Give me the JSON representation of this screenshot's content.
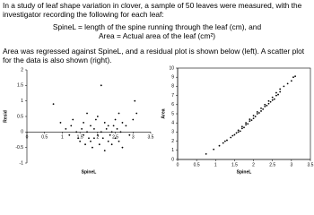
{
  "text": {
    "intro": "In a study of leaf shape variation in clover, a sample of 50 leaves were measured, with the investigator recording the following for each leaf:",
    "def1": "SpineL = length of the spine running through the leaf (cm), and",
    "def2": "Area = Actual area of the leaf (cm²)",
    "outro": "Area was regressed against SpineL, and a residual plot is shown below (left). A scatter plot for the data is also shown (right)."
  },
  "chart_data": [
    {
      "type": "scatter",
      "xlabel": "SpineL",
      "ylabel": "Resid",
      "color": "#000000",
      "xlim": [
        0,
        3.5
      ],
      "xticks": [
        0,
        0.5,
        1,
        1.5,
        2,
        2.5,
        3,
        3.5
      ],
      "ylim": [
        -1,
        2
      ],
      "yticks": [
        -1,
        -0.5,
        0,
        0.5,
        1,
        1.5,
        2
      ],
      "x": [
        0.75,
        0.95,
        1.1,
        1.2,
        1.25,
        1.3,
        1.4,
        1.45,
        1.5,
        1.55,
        1.6,
        1.6,
        1.65,
        1.7,
        1.7,
        1.75,
        1.8,
        1.8,
        1.85,
        1.9,
        1.9,
        1.95,
        2.0,
        2.0,
        2.05,
        2.1,
        2.1,
        2.15,
        2.2,
        2.2,
        2.25,
        2.3,
        2.3,
        2.35,
        2.4,
        2.4,
        2.45,
        2.5,
        2.5,
        2.55,
        2.6,
        2.6,
        2.65,
        2.7,
        2.7,
        2.8,
        2.9,
        3.0,
        3.05,
        3.1
      ],
      "y": [
        0.9,
        0.3,
        0.1,
        -0.1,
        0.2,
        0.4,
        0.0,
        -0.2,
        -0.3,
        0.1,
        -0.1,
        0.3,
        -0.4,
        0.0,
        0.6,
        -0.2,
        0.2,
        -0.3,
        -0.5,
        0.1,
        -0.2,
        0.4,
        -0.1,
        0.5,
        -0.4,
        0.0,
        1.5,
        -0.2,
        0.3,
        -0.6,
        0.1,
        -0.3,
        0.2,
        -0.1,
        0.0,
        -0.4,
        0.2,
        0.4,
        -0.2,
        0.1,
        -0.3,
        0.6,
        0.0,
        -0.5,
        0.3,
        0.2,
        -0.1,
        0.4,
        1.0,
        0.6
      ]
    },
    {
      "type": "scatter",
      "xlabel": "SpineL",
      "ylabel": "Area",
      "color": "#000000",
      "xlim": [
        0,
        3.5
      ],
      "xticks": [
        0,
        0.5,
        1,
        1.5,
        2,
        2.5,
        3,
        3.5
      ],
      "ylim": [
        0,
        10
      ],
      "yticks": [
        0,
        1,
        2,
        3,
        4,
        5,
        6,
        7,
        8,
        9,
        10
      ],
      "x": [
        0.75,
        0.95,
        1.1,
        1.2,
        1.25,
        1.3,
        1.4,
        1.45,
        1.5,
        1.55,
        1.6,
        1.6,
        1.65,
        1.7,
        1.7,
        1.75,
        1.8,
        1.8,
        1.85,
        1.9,
        1.9,
        1.95,
        2.0,
        2.0,
        2.05,
        2.1,
        2.1,
        2.15,
        2.2,
        2.2,
        2.25,
        2.3,
        2.3,
        2.35,
        2.4,
        2.4,
        2.45,
        2.5,
        2.5,
        2.55,
        2.6,
        2.6,
        2.65,
        2.7,
        2.7,
        2.8,
        2.9,
        3.0,
        3.05,
        3.1
      ],
      "y": [
        0.6,
        1.1,
        1.5,
        1.8,
        2.0,
        2.1,
        2.4,
        2.6,
        2.7,
        2.9,
        3.0,
        3.2,
        3.1,
        3.4,
        3.6,
        3.5,
        3.8,
        4.0,
        3.9,
        4.2,
        4.4,
        4.3,
        4.5,
        4.8,
        4.7,
        5.0,
        5.2,
        5.1,
        5.3,
        5.6,
        5.5,
        5.8,
        6.0,
        5.9,
        6.1,
        6.4,
        6.3,
        6.5,
        6.8,
        6.6,
        7.0,
        7.3,
        7.1,
        7.4,
        7.7,
        8.0,
        8.3,
        8.6,
        9.0,
        9.1
      ]
    }
  ]
}
